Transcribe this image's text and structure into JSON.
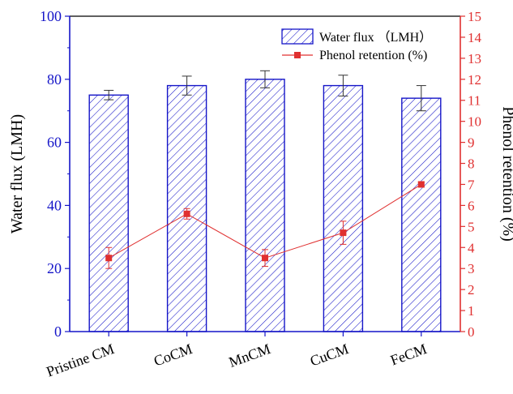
{
  "chart_data": {
    "type": "bar",
    "title": "",
    "categories": [
      "Pristine CM",
      "CoCM",
      "MnCM",
      "CuCM",
      "FeCM"
    ],
    "series": [
      {
        "name": "Water flux （LMH）",
        "type": "bar",
        "axis": "left",
        "values": [
          75,
          78,
          80,
          78,
          74
        ],
        "errors": [
          1.5,
          3,
          2.7,
          3.3,
          4
        ],
        "color": "#1515c8",
        "pattern": "diagonal-hatch"
      },
      {
        "name": "Phenol retention (%)",
        "type": "line",
        "axis": "right",
        "values": [
          3.5,
          5.6,
          3.5,
          4.7,
          7.0
        ],
        "errors": [
          0.5,
          0.25,
          0.4,
          0.55,
          0.12
        ],
        "color": "#e03030",
        "marker": "square"
      }
    ],
    "xlabel": "",
    "ylabel": "Water flux (LMH)",
    "y2label": "Phenol retention (%)",
    "ylim": [
      0,
      100
    ],
    "y2lim": [
      0,
      15
    ],
    "yticks": [
      0,
      20,
      40,
      60,
      80,
      100
    ],
    "y2ticks": [
      0,
      1,
      2,
      3,
      4,
      5,
      6,
      7,
      8,
      9,
      10,
      11,
      12,
      13,
      14,
      15
    ],
    "left_axis_color": "#1515c8",
    "right_axis_color": "#e03030",
    "grid": false,
    "legend_position": "top-right"
  }
}
